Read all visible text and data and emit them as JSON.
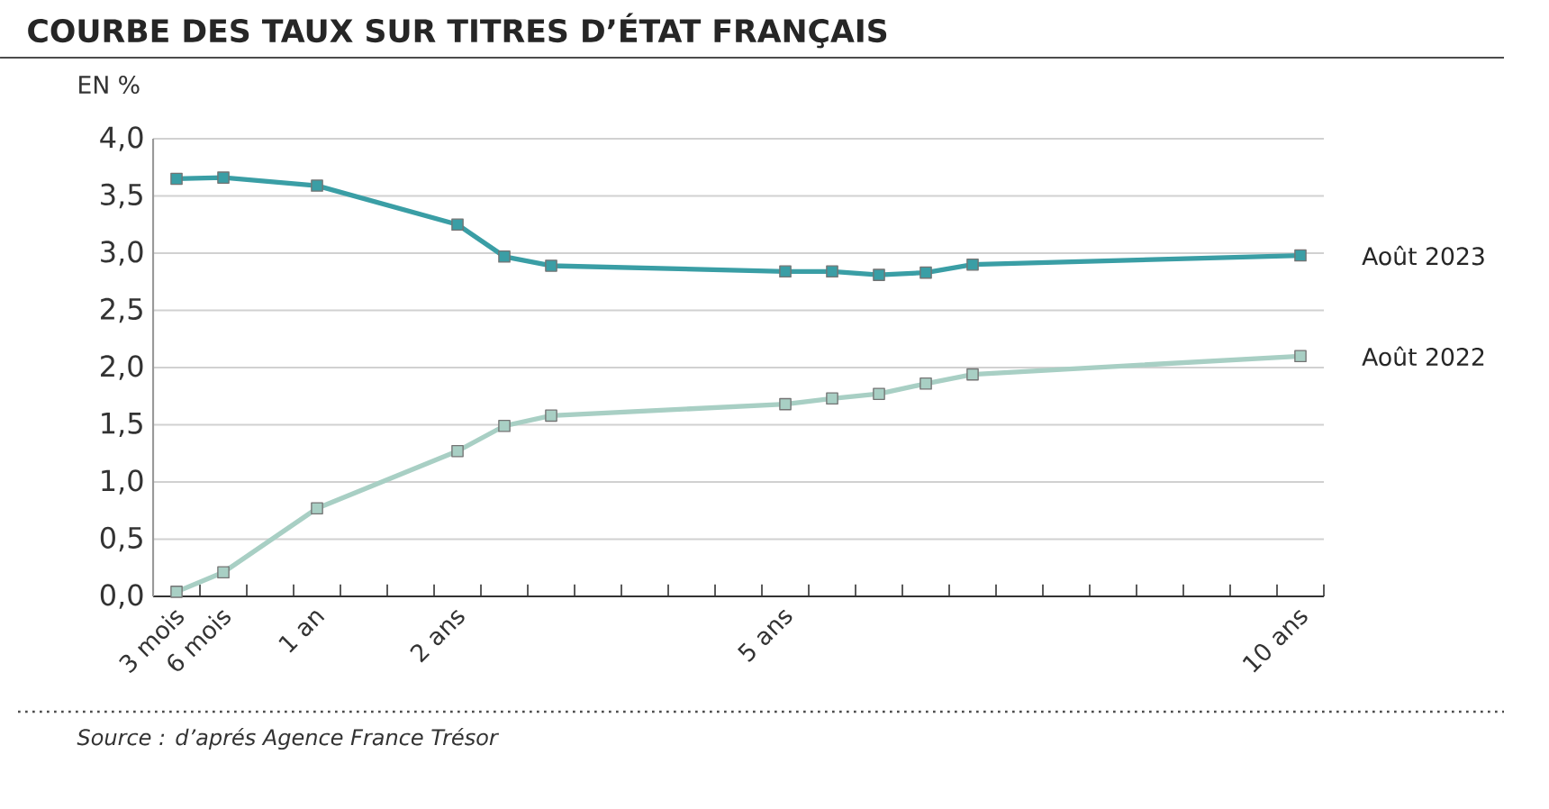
{
  "chart_data": {
    "type": "line",
    "title": "COURBE DES TAUX SUR TITRES D’ÉTAT FRANÇAIS",
    "ylabel": "EN %",
    "categories": [
      "3 mois",
      "6 mois",
      null,
      "1 an",
      null,
      null,
      "2 ans",
      null,
      null,
      null,
      null,
      null,
      null,
      "5 ans",
      null,
      null,
      null,
      null,
      null,
      null,
      null,
      null,
      null,
      null,
      "10 ans"
    ],
    "series": [
      {
        "name": "Août 2023",
        "color": "#3a9ea5",
        "values": [
          3.65,
          3.66,
          null,
          3.59,
          null,
          null,
          3.25,
          2.97,
          2.89,
          null,
          null,
          null,
          null,
          2.84,
          2.84,
          2.81,
          2.83,
          2.9,
          null,
          null,
          null,
          null,
          null,
          null,
          2.98
        ]
      },
      {
        "name": "Août 2022",
        "color": "#a8cfc4",
        "values": [
          0.04,
          0.21,
          null,
          0.77,
          null,
          null,
          1.27,
          1.49,
          1.58,
          null,
          null,
          null,
          null,
          1.68,
          1.73,
          1.77,
          1.86,
          1.94,
          null,
          null,
          null,
          null,
          null,
          null,
          2.1
        ]
      }
    ],
    "ylim": [
      0,
      4
    ],
    "yticks": [
      {
        "value": 0,
        "label": "0,0"
      },
      {
        "value": 0.5,
        "label": "0,5"
      },
      {
        "value": 1,
        "label": "1,0"
      },
      {
        "value": 1.5,
        "label": "1,5"
      },
      {
        "value": 2,
        "label": "2,0"
      },
      {
        "value": 2.5,
        "label": "2,5"
      },
      {
        "value": 3,
        "label": "3,0"
      },
      {
        "value": 3.5,
        "label": "3,5"
      },
      {
        "value": 4,
        "label": "4,0"
      }
    ],
    "grid": "y",
    "legend": false,
    "marker": "square",
    "line_style": "solid",
    "annotations": [
      "Source : d’aprés Agence France Trésor"
    ]
  }
}
